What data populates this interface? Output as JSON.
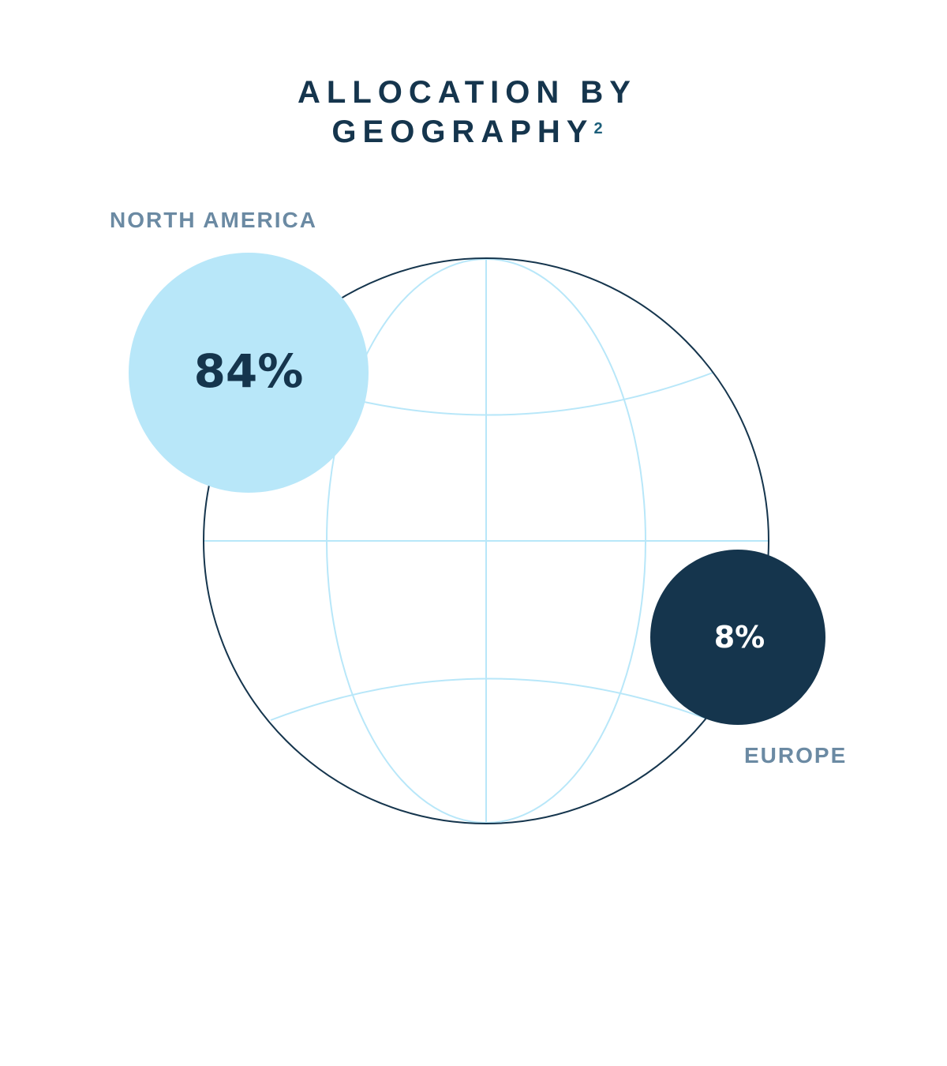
{
  "title": {
    "line1": "ALLOCATION BY",
    "line2": "GEOGRAPHY",
    "footnote_marker": "2"
  },
  "colors": {
    "title": "#15354d",
    "label": "#6b8aa3",
    "globe_outline": "#15354d",
    "globe_grid": "#b8e7f9",
    "north_america_bubble": "#b8e7f9",
    "north_america_text": "#15354d",
    "europe_bubble": "#15354d",
    "europe_text": "#ffffff"
  },
  "chart_data": {
    "type": "bubble",
    "title": "ALLOCATION BY GEOGRAPHY",
    "unit": "%",
    "series": [
      {
        "name": "NORTH AMERICA",
        "value": 84,
        "label": "84%"
      },
      {
        "name": "EUROPE",
        "value": 8,
        "label": "8%"
      }
    ]
  }
}
